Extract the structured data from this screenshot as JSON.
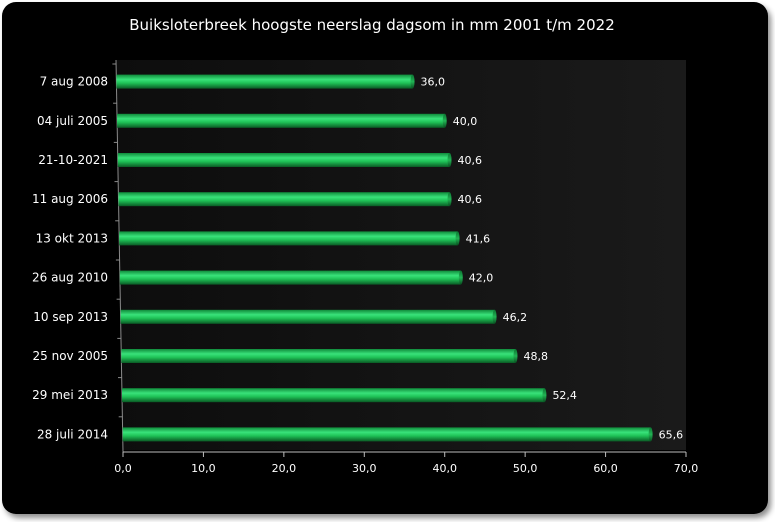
{
  "chart_data": {
    "type": "bar",
    "orientation": "horizontal",
    "title": "Buiksloterbreek hoogste neerslag dagsom in mm 2001 t/m 2022",
    "xlabel": "",
    "ylabel": "",
    "categories": [
      "7 aug 2008",
      "04 juli 2005",
      "21-10-2021",
      "11 aug 2006",
      "13 okt 2013",
      "26 aug 2010",
      "10 sep 2013",
      "25 nov 2005",
      "29 mei 2013",
      "28 juli 2014"
    ],
    "values": [
      36.0,
      40.0,
      40.6,
      40.6,
      41.6,
      42.0,
      46.2,
      48.8,
      52.4,
      65.6
    ],
    "value_labels": [
      "36,0",
      "40,0",
      "40,6",
      "40,6",
      "41,6",
      "42,0",
      "46,2",
      "48,8",
      "52,4",
      "65,6"
    ],
    "xlim": [
      0,
      70
    ],
    "ticks": [
      0,
      10,
      20,
      30,
      40,
      50,
      60,
      70
    ],
    "tick_labels": [
      "0,0",
      "10,0",
      "20,0",
      "30,0",
      "40,0",
      "50,0",
      "60,0",
      "70,0"
    ],
    "grid": false,
    "colors": {
      "background": "#000000",
      "bar": "#1fc257",
      "bar_dark": "#0b6a2c",
      "text": "#ffffff"
    }
  }
}
